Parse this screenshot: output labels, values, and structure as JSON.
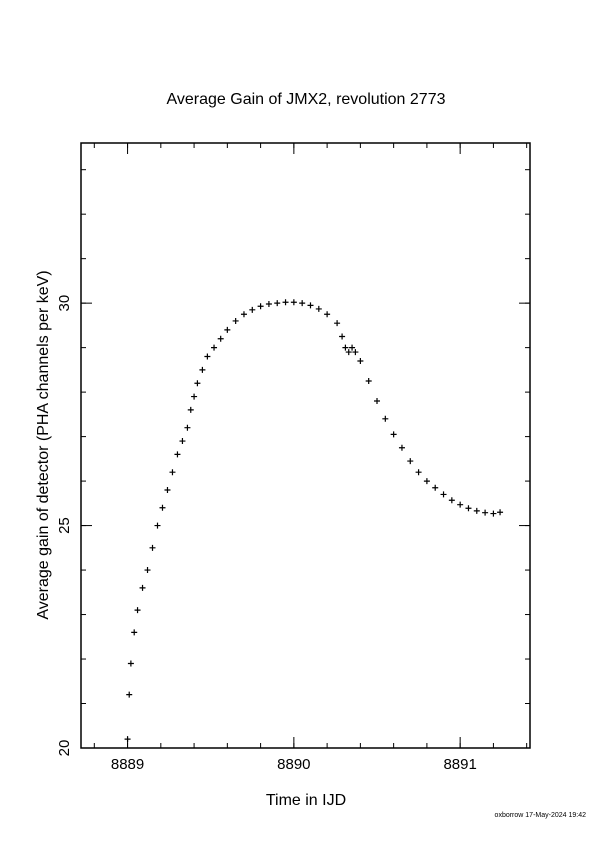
{
  "chart_data": {
    "type": "scatter",
    "title": "Average Gain of JMX2, revolution 2773",
    "xlabel": "Time in IJD",
    "ylabel": "Average gain of detector (PHA channels per keV)",
    "xlim": [
      8888.72,
      8891.42
    ],
    "ylim": [
      20,
      33.6
    ],
    "x_ticks": [
      8889,
      8890,
      8891
    ],
    "x_tick_labels": [
      "8889",
      "8890",
      "8891"
    ],
    "y_ticks": [
      20,
      25,
      30
    ],
    "y_tick_labels": [
      "20",
      "25",
      "30"
    ],
    "x_minor_step": 0.2,
    "y_minor_step": 1,
    "grid": false,
    "legend": "none",
    "marker": "plus",
    "color": "#000000",
    "x": [
      8889.0,
      8889.01,
      8889.02,
      8889.04,
      8889.06,
      8889.09,
      8889.12,
      8889.15,
      8889.18,
      8889.21,
      8889.24,
      8889.27,
      8889.3,
      8889.33,
      8889.36,
      8889.38,
      8889.4,
      8889.42,
      8889.45,
      8889.48,
      8889.52,
      8889.56,
      8889.6,
      8889.65,
      8889.7,
      8889.75,
      8889.8,
      8889.85,
      8889.9,
      8889.95,
      8890.0,
      8890.05,
      8890.1,
      8890.15,
      8890.2,
      8890.26,
      8890.29,
      8890.31,
      8890.33,
      8890.35,
      8890.37,
      8890.4,
      8890.45,
      8890.5,
      8890.55,
      8890.6,
      8890.65,
      8890.7,
      8890.75,
      8890.8,
      8890.85,
      8890.9,
      8890.95,
      8891.0,
      8891.05,
      8891.1,
      8891.15,
      8891.2,
      8891.24
    ],
    "y": [
      20.2,
      21.2,
      21.9,
      22.6,
      23.1,
      23.6,
      24.0,
      24.5,
      25.0,
      25.4,
      25.8,
      26.2,
      26.6,
      26.9,
      27.2,
      27.6,
      27.9,
      28.2,
      28.5,
      28.8,
      29.0,
      29.2,
      29.4,
      29.6,
      29.75,
      29.85,
      29.93,
      29.98,
      30.0,
      30.02,
      30.02,
      30.0,
      29.95,
      29.87,
      29.75,
      29.55,
      29.25,
      29.0,
      28.9,
      29.0,
      28.9,
      28.7,
      28.25,
      27.8,
      27.4,
      27.05,
      26.75,
      26.45,
      26.2,
      26.0,
      25.85,
      25.7,
      25.57,
      25.47,
      25.39,
      25.33,
      25.29,
      25.27,
      25.3
    ]
  },
  "footer": "oxborrow 17-May-2024 19:42"
}
